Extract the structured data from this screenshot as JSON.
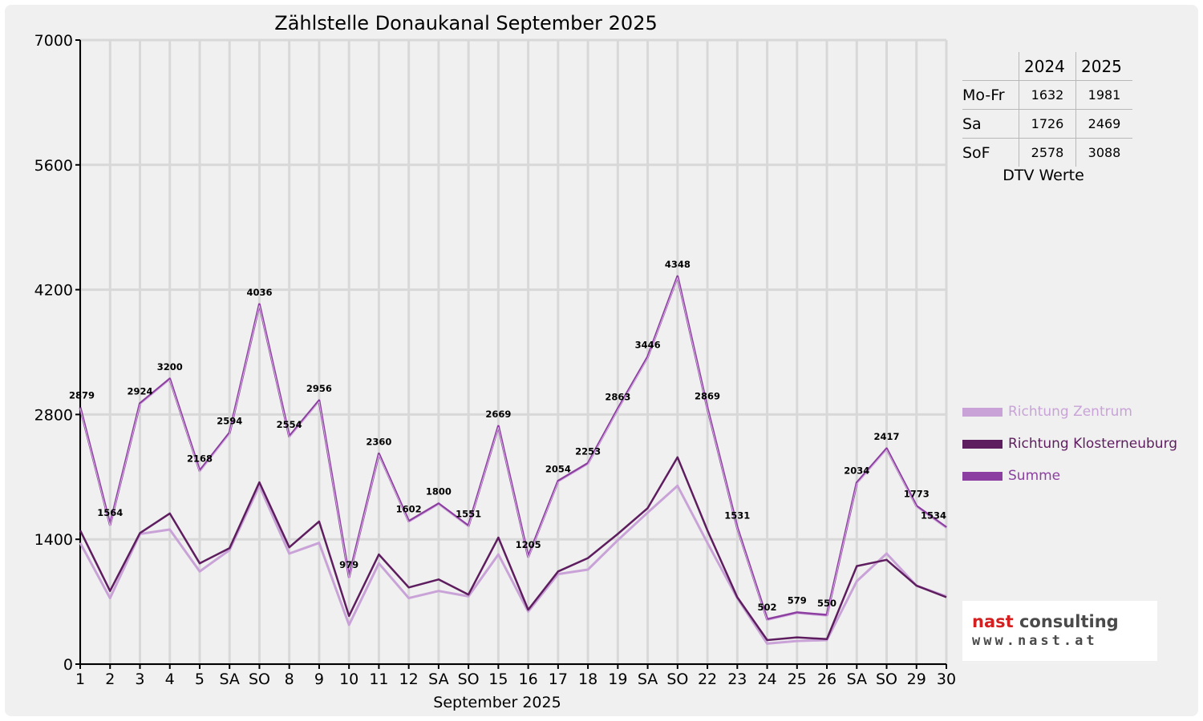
{
  "chart_data": {
    "type": "line",
    "title": "Zählstelle Donaukanal September 2025",
    "xlabel": "September 2025",
    "ylabel": "",
    "ylim": [
      0,
      7000
    ],
    "yticks": [
      0,
      1400,
      2800,
      4200,
      5600,
      7000
    ],
    "categories": [
      "1",
      "2",
      "3",
      "4",
      "5",
      "SA",
      "SO",
      "8",
      "9",
      "10",
      "11",
      "12",
      "SA",
      "SO",
      "15",
      "16",
      "17",
      "18",
      "19",
      "SA",
      "SO",
      "22",
      "23",
      "24",
      "25",
      "26",
      "SA",
      "SO",
      "29",
      "30"
    ],
    "red_categories": [
      "SO"
    ],
    "grid": true,
    "legend_position": "right",
    "series": [
      {
        "name": "Richtung Zentrum",
        "color": "#c9a3d8",
        "values": [
          1360,
          740,
          1460,
          1510,
          1040,
          1280,
          2000,
          1240,
          1360,
          440,
          1130,
          740,
          820,
          760,
          1230,
          590,
          1010,
          1060,
          1390,
          1700,
          2000,
          1360,
          740,
          230,
          260,
          270,
          930,
          1240,
          880,
          760
        ]
      },
      {
        "name": "Richtung Klosterneuburg",
        "color": "#5e1d5f",
        "values": [
          1500,
          820,
          1470,
          1690,
          1130,
          1300,
          2040,
          1310,
          1600,
          540,
          1230,
          860,
          950,
          780,
          1420,
          610,
          1040,
          1190,
          1460,
          1750,
          2320,
          1500,
          750,
          270,
          300,
          280,
          1100,
          1170,
          880,
          750
        ]
      },
      {
        "name": "Summe",
        "color": "#8c3fa0",
        "values": [
          2879,
          1564,
          2924,
          3200,
          2168,
          2594,
          4036,
          2554,
          2956,
          979,
          2360,
          1602,
          1800,
          1551,
          2669,
          1205,
          2054,
          2253,
          2863,
          3446,
          4348,
          2869,
          1531,
          502,
          579,
          550,
          2034,
          2417,
          1773,
          1534
        ],
        "data_labels": [
          "2879",
          "1564",
          "2924",
          "3200",
          "2168",
          "2594",
          "4036",
          "2554",
          "2956",
          "979",
          "2360",
          "1602",
          "1800",
          "1551",
          "2669",
          "1205",
          "2054",
          "2253",
          "2863",
          "3446",
          "4348",
          "2869",
          "1531",
          "502",
          "579",
          "550",
          "2034",
          "2417",
          "1773",
          "1534"
        ]
      }
    ]
  },
  "dtv_table": {
    "caption": "DTV Werte",
    "years": [
      "2024",
      "2025"
    ],
    "rows": [
      {
        "label": "Mo-Fr",
        "v2024": "1632",
        "v2025": "1981"
      },
      {
        "label": "Sa",
        "v2024": "1726",
        "v2025": "2469"
      },
      {
        "label": "SoF",
        "v2024": "2578",
        "v2025": "3088"
      }
    ]
  },
  "logo": {
    "name_part1": "nast",
    "name_part2": " consulting",
    "url": "www.nast.at"
  }
}
